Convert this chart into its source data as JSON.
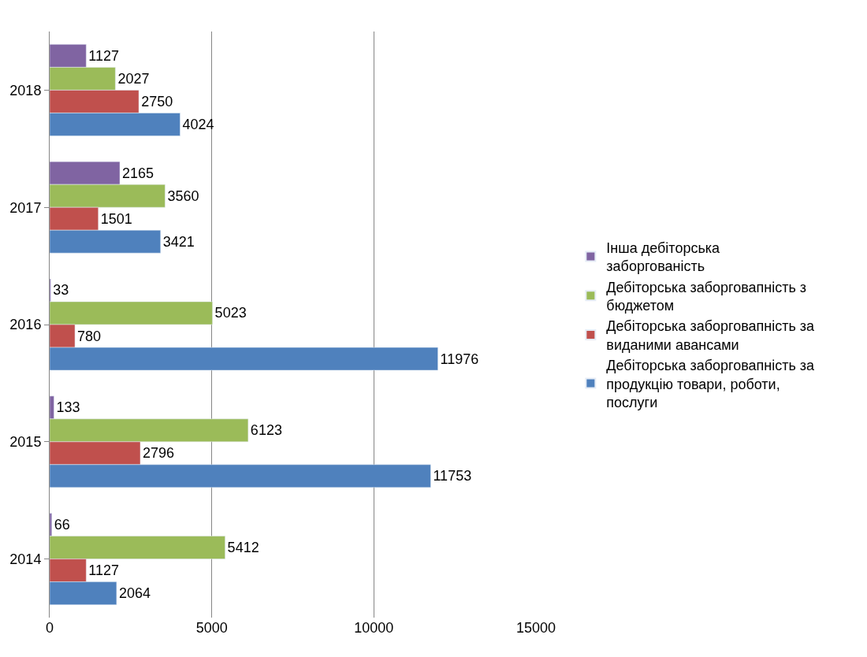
{
  "chart_data": {
    "type": "bar",
    "orientation": "horizontal",
    "categories": [
      "2018",
      "2017",
      "2016",
      "2015",
      "2014"
    ],
    "series": [
      {
        "name": "Інша дебіторська заборгованість",
        "color": "#8064a2",
        "values": [
          1127,
          2165,
          33,
          133,
          66
        ]
      },
      {
        "name": "Дебіторська заборговапність з бюджетом",
        "color": "#9bbb59",
        "values": [
          2027,
          3560,
          5023,
          6123,
          5412
        ]
      },
      {
        "name": "Дебіторська заборговапність за виданими авансами",
        "color": "#c0504d",
        "values": [
          2750,
          1501,
          780,
          2796,
          1127
        ]
      },
      {
        "name": "Дебіторська заборговапність за продукцію товари, роботи, послуги",
        "color": "#4f81bd",
        "values": [
          4024,
          3421,
          11976,
          11753,
          2064
        ]
      }
    ],
    "xlim": [
      0,
      15000
    ],
    "xticks": [
      0,
      5000,
      10000,
      15000
    ],
    "grid": "x",
    "legend": "right",
    "data_labels": true
  }
}
